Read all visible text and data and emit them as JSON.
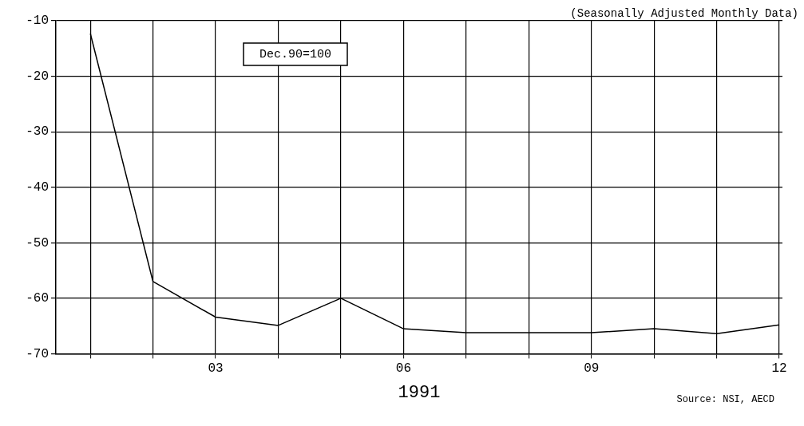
{
  "chart_data": {
    "type": "line",
    "xlabel": "1991",
    "x": [
      1,
      2,
      3,
      4,
      5,
      6,
      7,
      8,
      9,
      10,
      11,
      12
    ],
    "values": [
      -12.3,
      -57,
      -63.4,
      -64.9,
      -60,
      -65.5,
      -66.2,
      -66.2,
      -66.2,
      -65.5,
      -66.4,
      -64.8
    ],
    "color": "#000000",
    "marker": "none",
    "line_style": "solid",
    "xlim": [
      0.45,
      12.05
    ],
    "xticks": [
      {
        "value": 1,
        "label": null
      },
      {
        "value": 2,
        "label": null
      },
      {
        "value": 3,
        "label": "03"
      },
      {
        "value": 4,
        "label": null
      },
      {
        "value": 5,
        "label": null
      },
      {
        "value": 6,
        "label": "06"
      },
      {
        "value": 7,
        "label": null
      },
      {
        "value": 8,
        "label": null
      },
      {
        "value": 9,
        "label": "09"
      },
      {
        "value": 10,
        "label": null
      },
      {
        "value": 11,
        "label": null
      },
      {
        "value": 12,
        "label": "12"
      }
    ],
    "ylim": [
      -70,
      -10
    ],
    "yticks": [
      -70,
      -60,
      -50,
      -40,
      -30,
      -20,
      -10
    ],
    "grid": true,
    "legend": false,
    "annotations": [
      "(Seasonally Adjusted Monthly Data)",
      "Dec.90=100",
      "Source: NSI, AECD"
    ]
  }
}
